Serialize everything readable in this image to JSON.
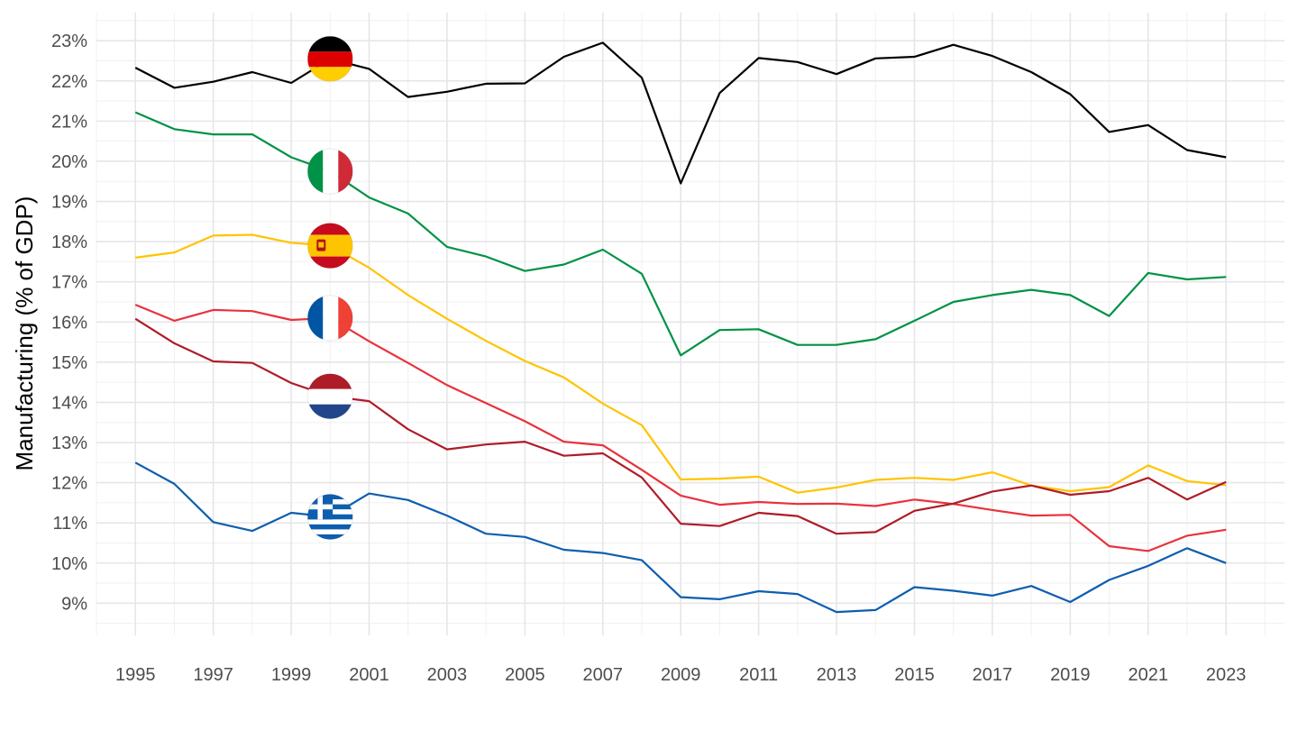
{
  "chart_data": {
    "type": "line",
    "title": "",
    "xlabel": "",
    "ylabel": "Manufacturing (% of GDP)",
    "xlim": [
      1994,
      2024.5
    ],
    "ylim": [
      8.2,
      23.7
    ],
    "y_ticks": [
      9,
      10,
      11,
      12,
      13,
      14,
      15,
      16,
      17,
      18,
      19,
      20,
      21,
      22,
      23
    ],
    "y_tick_labels": [
      "9%",
      "10%",
      "11%",
      "12%",
      "13%",
      "14%",
      "15%",
      "16%",
      "17%",
      "18%",
      "19%",
      "20%",
      "21%",
      "22%",
      "23%"
    ],
    "x_ticks": [
      1995,
      1997,
      1999,
      2001,
      2003,
      2005,
      2007,
      2009,
      2011,
      2013,
      2015,
      2017,
      2019,
      2021,
      2023
    ],
    "x_tick_labels": [
      "1995",
      "1997",
      "1999",
      "2001",
      "2003",
      "2005",
      "2007",
      "2009",
      "2011",
      "2013",
      "2015",
      "2017",
      "2019",
      "2021",
      "2023"
    ],
    "grid": true,
    "legend": "flag markers at 2000",
    "x": [
      1995,
      1996,
      1997,
      1998,
      1999,
      2000,
      2001,
      2002,
      2003,
      2004,
      2005,
      2006,
      2007,
      2008,
      2009,
      2010,
      2011,
      2012,
      2013,
      2014,
      2015,
      2016,
      2017,
      2018,
      2019,
      2020,
      2021,
      2022,
      2023
    ],
    "series": [
      {
        "flag": "germany-flag-icon",
        "color": "#000000",
        "values": [
          22.33,
          21.83,
          21.98,
          22.22,
          21.95,
          22.55,
          22.3,
          21.6,
          21.73,
          21.93,
          21.94,
          22.6,
          22.95,
          22.08,
          19.45,
          21.7,
          22.57,
          22.47,
          22.17,
          22.56,
          22.6,
          22.9,
          22.62,
          22.22,
          21.67,
          20.73,
          20.9,
          20.28,
          20.1
        ]
      },
      {
        "flag": "italy-flag-icon",
        "color": "#009246",
        "values": [
          21.22,
          20.8,
          20.67,
          20.67,
          20.1,
          19.75,
          19.1,
          18.7,
          17.87,
          17.63,
          17.27,
          17.43,
          17.8,
          17.2,
          15.17,
          15.8,
          15.82,
          15.43,
          15.43,
          15.57,
          16.03,
          16.5,
          16.67,
          16.8,
          16.67,
          16.15,
          17.22,
          17.06,
          17.12
        ]
      },
      {
        "flag": "spain-flag-icon",
        "color": "#FFC400",
        "values": [
          17.6,
          17.73,
          18.15,
          18.17,
          17.97,
          17.9,
          17.35,
          16.67,
          16.08,
          15.53,
          15.03,
          14.62,
          13.97,
          13.43,
          12.08,
          12.1,
          12.15,
          11.75,
          11.88,
          12.07,
          12.12,
          12.07,
          12.26,
          11.93,
          11.79,
          11.89,
          12.43,
          12.04,
          11.94
        ]
      },
      {
        "flag": "france-flag-icon",
        "color": "#E8323C",
        "values": [
          16.43,
          16.03,
          16.3,
          16.27,
          16.05,
          16.1,
          15.52,
          14.98,
          14.43,
          13.98,
          13.53,
          13.02,
          12.93,
          12.32,
          11.68,
          11.45,
          11.52,
          11.47,
          11.48,
          11.42,
          11.58,
          11.47,
          11.32,
          11.18,
          11.2,
          10.42,
          10.3,
          10.68,
          10.83
        ]
      },
      {
        "flag": "netherlands-flag-icon",
        "color": "#AE1C28",
        "values": [
          16.08,
          15.47,
          15.02,
          14.98,
          14.48,
          14.15,
          14.03,
          13.33,
          12.83,
          12.95,
          13.02,
          12.67,
          12.73,
          12.13,
          10.98,
          10.92,
          11.25,
          11.17,
          10.73,
          10.77,
          11.3,
          11.48,
          11.78,
          11.93,
          11.7,
          11.79,
          12.12,
          11.58,
          12.02
        ]
      },
      {
        "flag": "greece-flag-icon",
        "color": "#0D5EAF",
        "values": [
          12.5,
          11.97,
          11.02,
          10.8,
          11.25,
          11.15,
          11.73,
          11.57,
          11.18,
          10.73,
          10.65,
          10.33,
          10.25,
          10.07,
          9.15,
          9.1,
          9.3,
          9.23,
          8.78,
          8.83,
          9.4,
          9.31,
          9.19,
          9.43,
          9.03,
          9.58,
          9.93,
          10.37,
          10.0
        ]
      }
    ]
  }
}
